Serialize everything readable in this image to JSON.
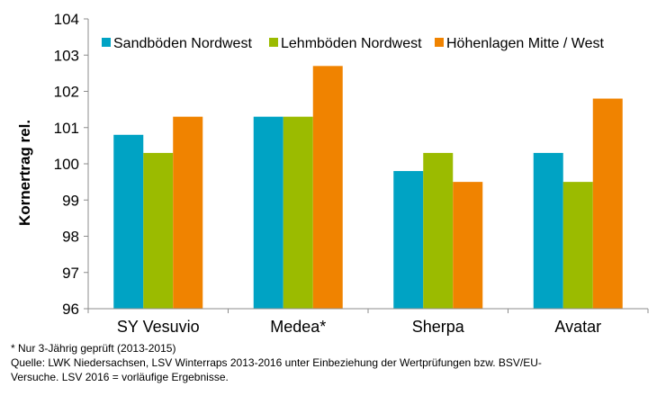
{
  "chart_data": {
    "type": "bar",
    "title": "",
    "xlabel": "",
    "ylabel": "Kornertrag rel.",
    "ylim": [
      96,
      104
    ],
    "yticks": [
      "96",
      "97",
      "98",
      "99",
      "100",
      "101",
      "102",
      "103",
      "104"
    ],
    "grid": false,
    "legend_position": "top",
    "categories": [
      "SY Vesuvio",
      "Medea*",
      "Sherpa",
      "Avatar"
    ],
    "series": [
      {
        "name": "Sandböden Nordwest",
        "color": "#00A3C4",
        "values": [
          100.8,
          101.3,
          99.8,
          100.3
        ]
      },
      {
        "name": "Lehmböden Nordwest",
        "color": "#9BBB00",
        "values": [
          100.3,
          101.3,
          100.3,
          99.5
        ]
      },
      {
        "name": "Höhenlagen Mitte / West",
        "color": "#F08300",
        "values": [
          101.3,
          102.7,
          99.5,
          101.8
        ]
      }
    ]
  },
  "footnotes": {
    "line1": "* Nur 3-Jährig geprüft (2013-2015)",
    "line2": "Quelle: LWK Niedersachsen, LSV Winterraps 2013-2016 unter Einbeziehung der Wertprüfungen bzw. BSV/EU-",
    "line3": "Versuche. LSV 2016 = vorläufige Ergebnisse."
  }
}
